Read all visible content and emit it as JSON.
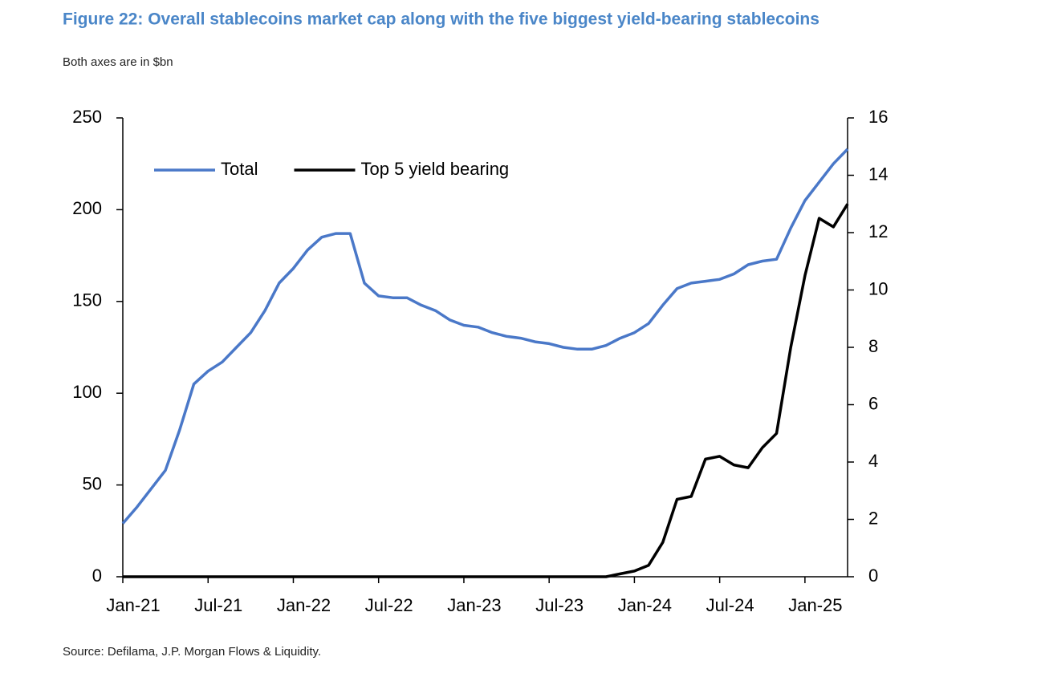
{
  "chart_data": {
    "type": "line",
    "title": "Figure 22: Overall stablecoins market cap along with the five biggest yield-bearing stablecoins",
    "subtitle": "Both axes are in $bn",
    "source": "Source: Defilama, J.P. Morgan Flows & Liquidity.",
    "categories": [
      "Jan-21",
      null,
      null,
      null,
      null,
      null,
      "Jul-21",
      null,
      null,
      null,
      null,
      null,
      "Jan-22",
      null,
      null,
      null,
      null,
      null,
      "Jul-22",
      null,
      null,
      null,
      null,
      null,
      "Jan-23",
      null,
      null,
      null,
      null,
      null,
      "Jul-23",
      null,
      null,
      null,
      null,
      null,
      "Jan-24",
      null,
      null,
      null,
      null,
      null,
      "Jul-24",
      null,
      null,
      null,
      null,
      null,
      "Jan-25",
      null,
      null,
      null
    ],
    "series": [
      {
        "name": "Total",
        "color": "#4a78c8",
        "axis": "y",
        "values": [
          29,
          38,
          48,
          58,
          80,
          105,
          112,
          117,
          125,
          133,
          145,
          160,
          168,
          178,
          185,
          187,
          187,
          160,
          153,
          152,
          152,
          148,
          145,
          140,
          137,
          136,
          133,
          131,
          130,
          128,
          127,
          125,
          124,
          124,
          126,
          130,
          133,
          138,
          148,
          157,
          160,
          161,
          162,
          165,
          170,
          172,
          173,
          190,
          205,
          215,
          225,
          233
        ]
      },
      {
        "name": "Top 5 yield bearing",
        "color": "#000000",
        "axis": "y2",
        "values": [
          0,
          0,
          0,
          0,
          0,
          0,
          0,
          0,
          0,
          0,
          0,
          0,
          0,
          0,
          0,
          0,
          0,
          0,
          0,
          0,
          0,
          0,
          0,
          0,
          0,
          0,
          0,
          0,
          0,
          0,
          0,
          0,
          0,
          0,
          0,
          0.1,
          0.2,
          0.4,
          1.2,
          2.7,
          2.8,
          4.1,
          4.2,
          3.9,
          3.8,
          4.5,
          5.0,
          8.0,
          10.5,
          12.5,
          12.2,
          13.0
        ]
      }
    ],
    "ylim": [
      0,
      250
    ],
    "yticks": [
      0,
      50,
      100,
      150,
      200,
      250
    ],
    "y2lim": [
      0,
      16
    ],
    "y2ticks": [
      0,
      2,
      4,
      6,
      8,
      10,
      12,
      14,
      16
    ],
    "legend": "upper left",
    "grid": false
  }
}
